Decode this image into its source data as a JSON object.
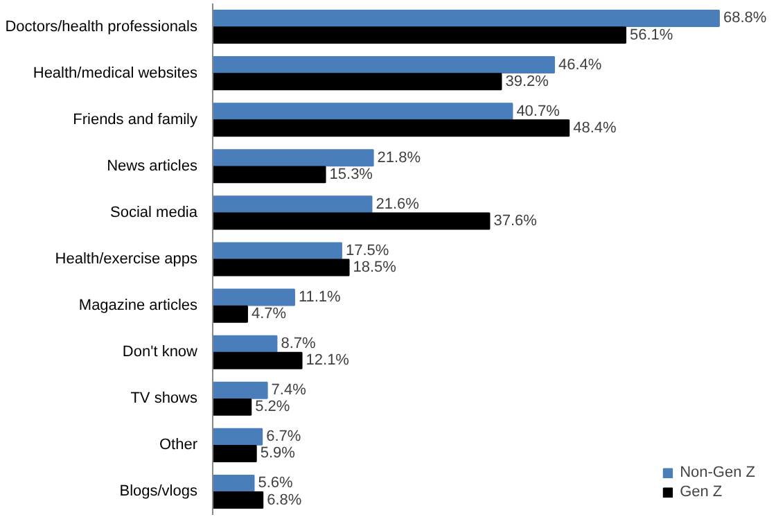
{
  "chart_data": {
    "type": "bar",
    "orientation": "horizontal",
    "legend": "bottom right",
    "grid": false,
    "categories": [
      "Doctors/health professionals",
      "Health/medical websites",
      "Friends and family",
      "News articles",
      "Social media",
      "Health/exercise apps",
      "Magazine articles",
      "Don't know",
      "TV shows",
      "Other",
      "Blogs/vlogs"
    ],
    "series": [
      {
        "name": "Non-Gen Z",
        "color": "#4a7ebb",
        "values": [
          68.8,
          46.4,
          40.7,
          21.8,
          21.6,
          17.5,
          11.1,
          8.7,
          7.4,
          6.7,
          5.6
        ],
        "value_labels": [
          "68.8%",
          "46.4%",
          "40.7%",
          "21.8%",
          "21.6%",
          "17.5%",
          "11.1%",
          "8.7%",
          "7.4%",
          "6.7%",
          "5.6%"
        ]
      },
      {
        "name": "Gen Z",
        "color": "#000000",
        "values": [
          56.1,
          39.2,
          48.4,
          15.3,
          37.6,
          18.5,
          4.7,
          12.1,
          5.2,
          5.9,
          6.8
        ],
        "value_labels": [
          "56.1%",
          "39.2%",
          "48.4%",
          "15.3%",
          "37.6%",
          "18.5%",
          "4.7%",
          "12.1%",
          "5.2%",
          "5.9%",
          "6.8%"
        ]
      }
    ]
  }
}
